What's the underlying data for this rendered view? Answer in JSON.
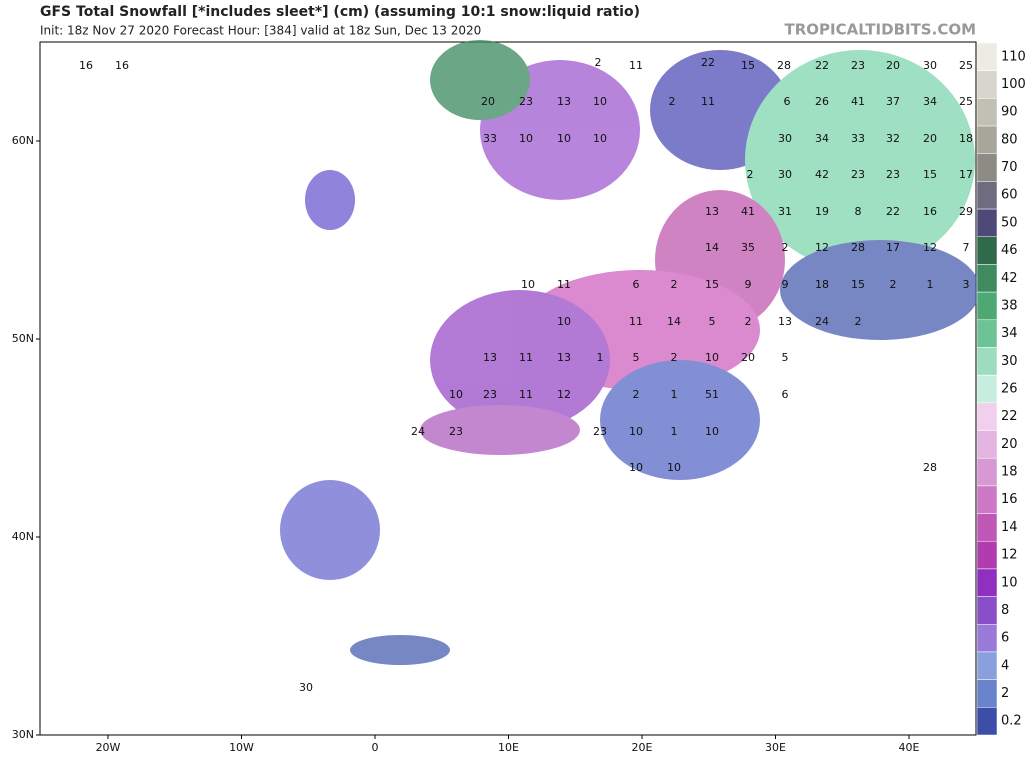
{
  "header": {
    "title": "GFS Total Snowfall [*includes sleet*] (cm) (assuming 10:1 snow:liquid ratio)",
    "subtitle": "Init: 18z Nov 27 2020   Forecast Hour: [384]   valid at 18z Sun, Dec 13 2020",
    "site": "TROPICALTIDBITS.COM"
  },
  "lat_labels": [
    "60N",
    "50N",
    "40N",
    "30N"
  ],
  "lon_labels": [
    "20W",
    "10W",
    "0",
    "10E",
    "20E",
    "30E",
    "40E"
  ],
  "colorbar": {
    "labels": [
      "110",
      "100",
      "90",
      "80",
      "70",
      "60",
      "50",
      "46",
      "42",
      "38",
      "34",
      "30",
      "26",
      "22",
      "20",
      "18",
      "16",
      "14",
      "12",
      "10",
      "8",
      "6",
      "4",
      "2",
      "0.2"
    ]
  },
  "map_labels": [
    "16",
    "16",
    "2",
    "11",
    "22",
    "15",
    "28",
    "22",
    "23",
    "20",
    "30",
    "25",
    "20",
    "23",
    "13",
    "10",
    "2",
    "11",
    "6",
    "26",
    "41",
    "37",
    "34",
    "25",
    "33",
    "10",
    "10",
    "10",
    "30",
    "34",
    "33",
    "32",
    "20",
    "18",
    "2",
    "30",
    "42",
    "23",
    "23",
    "15",
    "17",
    "13",
    "41",
    "31",
    "19",
    "8",
    "22",
    "16",
    "29",
    "14",
    "35",
    "2",
    "12",
    "28",
    "17",
    "12",
    "7",
    "10",
    "11",
    "6",
    "2",
    "15",
    "9",
    "9",
    "18",
    "15",
    "2",
    "1",
    "3",
    "10",
    "11",
    "14",
    "5",
    "2",
    "13",
    "24",
    "2",
    "13",
    "11",
    "13",
    "1",
    "5",
    "2",
    "10",
    "20",
    "5",
    "10",
    "23",
    "11",
    "12",
    "2",
    "1",
    "51",
    "6",
    "24",
    "23",
    "23",
    "10",
    "1",
    "10",
    "10",
    "10",
    "28",
    "30"
  ]
}
